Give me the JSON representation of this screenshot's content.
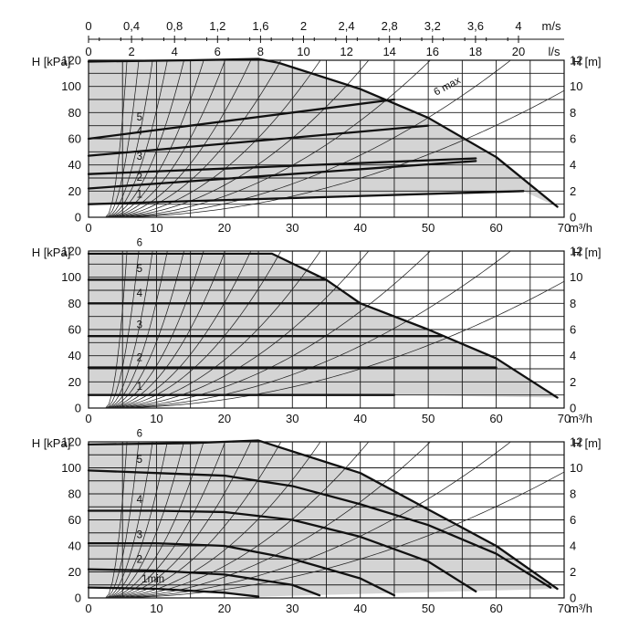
{
  "colors": {
    "curve": "#111111",
    "shade": "#d4d4d4",
    "grid": "#1a1a1a",
    "background": "#ffffff"
  },
  "top_axis": {
    "unit_ms": "m/s",
    "unit_ls": "l/s",
    "ms_ticks": [
      "0",
      "0,4",
      "0,8",
      "1,2",
      "1,6",
      "2",
      "2,4",
      "2,8",
      "3,2",
      "3,6",
      "4"
    ],
    "ls_ticks": [
      "0",
      "2",
      "4",
      "6",
      "8",
      "10",
      "12",
      "14",
      "16",
      "18",
      "20"
    ]
  },
  "chart_data": [
    {
      "type": "line",
      "ylabel": "H [kPa]",
      "y2label": "H [m]",
      "xlabel": "m³/h",
      "xlim": [
        0,
        70
      ],
      "ylim": [
        0,
        120
      ],
      "y2lim": [
        0,
        12
      ],
      "x_ticks": [
        "0",
        "10",
        "20",
        "30",
        "40",
        "50",
        "60",
        "70"
      ],
      "y_ticks": [
        "0",
        "20",
        "40",
        "60",
        "80",
        "100",
        "120"
      ],
      "y2_ticks": [
        "0",
        "2",
        "4",
        "6",
        "8",
        "10",
        "12"
      ],
      "grid": true,
      "series": [
        {
          "name": "6 max",
          "x": [
            0,
            15,
            25,
            28,
            40,
            50,
            60,
            69
          ],
          "y": [
            119,
            120,
            121,
            118,
            98,
            76,
            46,
            8
          ]
        },
        {
          "name": "5",
          "x": [
            0,
            45
          ],
          "y": [
            60,
            90
          ]
        },
        {
          "name": "4",
          "x": [
            0,
            50
          ],
          "y": [
            47,
            70
          ]
        },
        {
          "name": "3",
          "x": [
            0,
            57
          ],
          "y": [
            33,
            45
          ]
        },
        {
          "name": "2",
          "x": [
            0,
            57
          ],
          "y": [
            22,
            43
          ]
        },
        {
          "name": "1",
          "x": [
            0,
            64
          ],
          "y": [
            10,
            20
          ]
        }
      ]
    },
    {
      "type": "line",
      "ylabel": "H [kPa]",
      "y2label": "H [m]",
      "xlabel": "m³/h",
      "xlim": [
        0,
        70
      ],
      "ylim": [
        0,
        120
      ],
      "y2lim": [
        0,
        12
      ],
      "x_ticks": [
        "0",
        "10",
        "20",
        "30",
        "40",
        "50",
        "60",
        "70"
      ],
      "y_ticks": [
        "0",
        "20",
        "40",
        "60",
        "80",
        "100",
        "120"
      ],
      "y2_ticks": [
        "0",
        "2",
        "4",
        "6",
        "8",
        "10",
        "12"
      ],
      "grid": true,
      "series": [
        {
          "name": "6",
          "x": [
            0,
            27,
            35,
            40,
            50,
            60,
            69
          ],
          "y": [
            118,
            118,
            98,
            80,
            60,
            38,
            8
          ]
        },
        {
          "name": "5",
          "x": [
            0,
            35
          ],
          "y": [
            98,
            98
          ]
        },
        {
          "name": "4",
          "x": [
            0,
            40
          ],
          "y": [
            80,
            80
          ]
        },
        {
          "name": "3",
          "x": [
            0,
            52
          ],
          "y": [
            55,
            55
          ]
        },
        {
          "name": "2",
          "x": [
            0,
            60
          ],
          "y": [
            31,
            31
          ]
        },
        {
          "name": "1",
          "x": [
            0,
            45
          ],
          "y": [
            10,
            10
          ]
        }
      ]
    },
    {
      "type": "line",
      "ylabel": "H [kPa]",
      "y2label": "H [m]",
      "xlabel": "m³/h",
      "xlim": [
        0,
        70
      ],
      "ylim": [
        0,
        120
      ],
      "y2lim": [
        0,
        12
      ],
      "x_ticks": [
        "0",
        "10",
        "20",
        "30",
        "40",
        "50",
        "60",
        "70"
      ],
      "y_ticks": [
        "0",
        "20",
        "40",
        "60",
        "80",
        "100",
        "120"
      ],
      "y2_ticks": [
        "0",
        "2",
        "4",
        "6",
        "8",
        "10",
        "12"
      ],
      "grid": true,
      "series": [
        {
          "name": "6",
          "x": [
            0,
            15,
            25,
            40,
            50,
            60,
            69
          ],
          "y": [
            118,
            119,
            121,
            96,
            68,
            40,
            7
          ]
        },
        {
          "name": "5",
          "x": [
            0,
            10,
            20,
            30,
            40,
            50,
            60,
            68
          ],
          "y": [
            98,
            96,
            94,
            86,
            72,
            56,
            34,
            8
          ]
        },
        {
          "name": "4",
          "x": [
            0,
            10,
            20,
            30,
            40,
            50,
            57
          ],
          "y": [
            67,
            67,
            66,
            60,
            47,
            28,
            5
          ]
        },
        {
          "name": "3",
          "x": [
            0,
            10,
            20,
            30,
            40,
            45
          ],
          "y": [
            42,
            42,
            40,
            30,
            15,
            2
          ]
        },
        {
          "name": "2",
          "x": [
            0,
            10,
            20,
            30,
            34
          ],
          "y": [
            22,
            21,
            18,
            10,
            2
          ]
        },
        {
          "name": "1min",
          "x": [
            0,
            10,
            20,
            25
          ],
          "y": [
            8,
            7,
            4,
            1
          ]
        }
      ]
    }
  ]
}
